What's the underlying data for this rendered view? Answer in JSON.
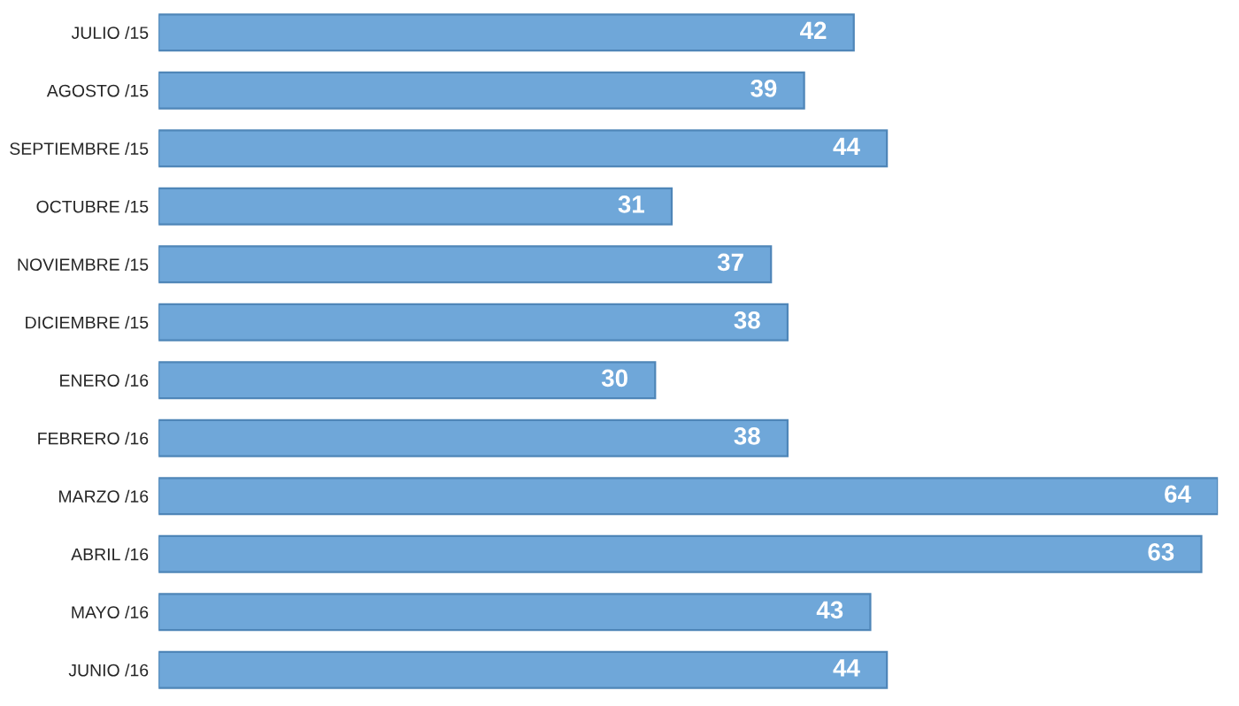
{
  "chart_data": {
    "type": "bar",
    "orientation": "horizontal",
    "categories": [
      "JULIO /15",
      "AGOSTO /15",
      "SEPTIEMBRE /15",
      "OCTUBRE /15",
      "NOVIEMBRE /15",
      "DICIEMBRE /15",
      "ENERO /16",
      "FEBRERO /16",
      "MARZO /16",
      "ABRIL /16",
      "MAYO /16",
      "JUNIO /16"
    ],
    "values": [
      42,
      39,
      44,
      31,
      37,
      38,
      30,
      38,
      64,
      63,
      43,
      44
    ],
    "color": "#6fa7d9",
    "data_labels": true,
    "grid": false,
    "legend": false
  }
}
